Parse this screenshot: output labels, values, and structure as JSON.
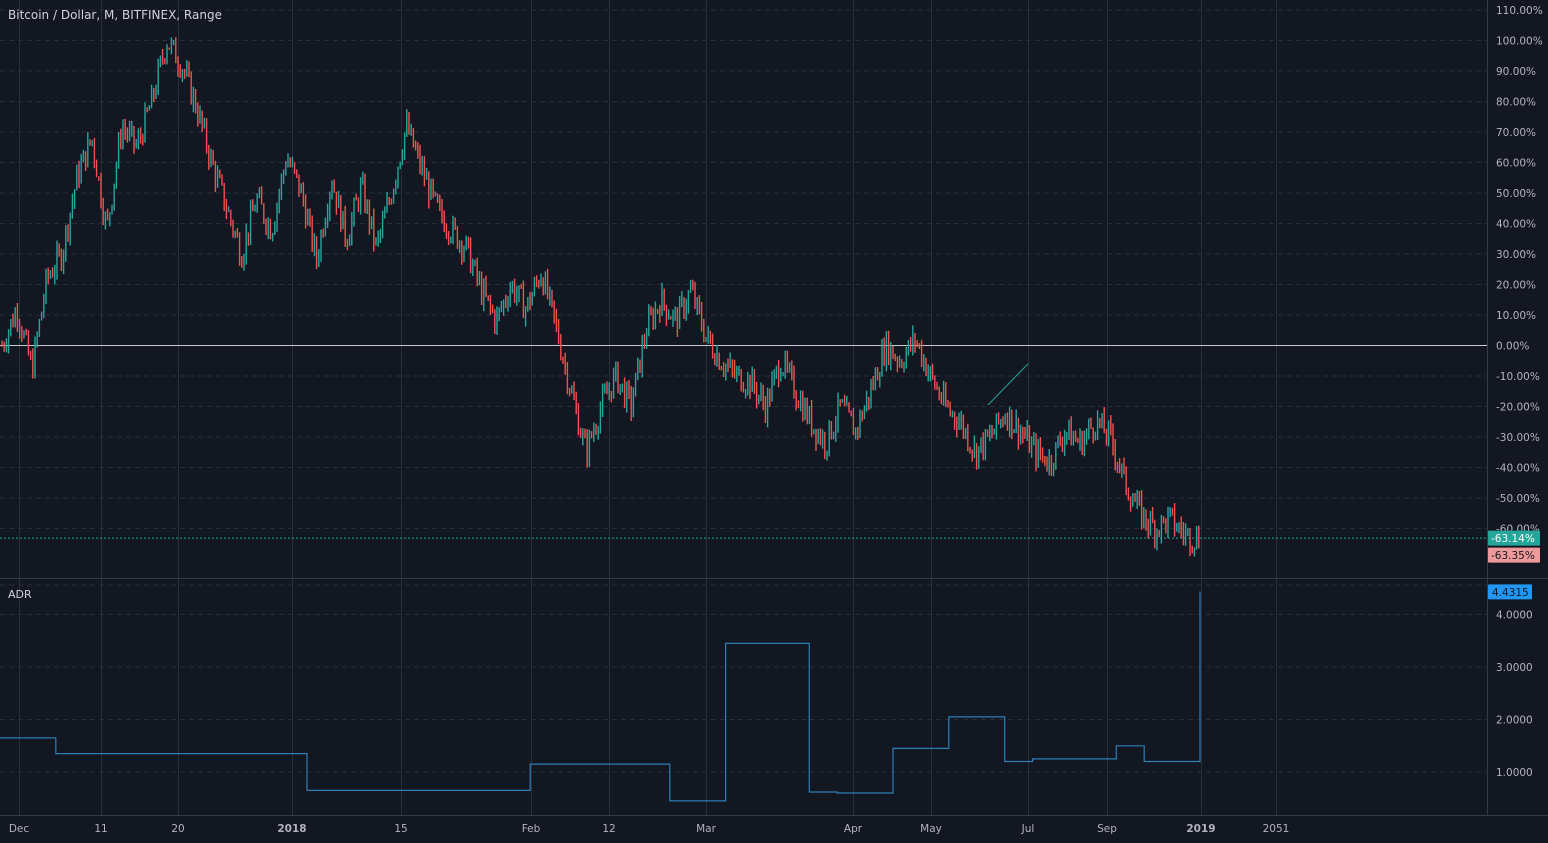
{
  "header": {
    "title": "Bitcoin / Dollar, M, BITFINEX, Range"
  },
  "adr": {
    "label": "ADR"
  },
  "colors": {
    "background": "#131722",
    "grid": "#2a2e39",
    "up": "#26a69a",
    "down": "#ef5350",
    "zero_line": "#c8cbd2",
    "adr_line": "#2e7db5",
    "last_price_badge": "#26a69a",
    "low_badge": "#ef9a9a",
    "adr_badge": "#2196f3"
  },
  "chart_data": [
    {
      "type": "line",
      "title": "Bitcoin / Dollar, M, BITFINEX, Range",
      "y_unit": "%",
      "ylim": [
        -70,
        110
      ],
      "yticks": [
        "110.00%",
        "100.00%",
        "90.00%",
        "80.00%",
        "70.00%",
        "60.00%",
        "50.00%",
        "40.00%",
        "30.00%",
        "20.00%",
        "10.00%",
        "0.00%",
        "-10.00%",
        "-20.00%",
        "-30.00%",
        "-40.00%",
        "-50.00%",
        "-60.00%"
      ],
      "ytick_values": [
        110,
        100,
        90,
        80,
        70,
        60,
        50,
        40,
        30,
        20,
        10,
        0,
        -10,
        -20,
        -30,
        -40,
        -50,
        -60
      ],
      "xticks": [
        "Dec",
        "11",
        "20",
        "2018",
        "15",
        "Feb",
        "12",
        "Mar",
        "Apr",
        "May",
        "Jul",
        "Sep",
        "2019",
        "2051"
      ],
      "bold_xticks": [
        "2018",
        "2019"
      ],
      "x": [
        0,
        2,
        4,
        6,
        8,
        10,
        12,
        14,
        16,
        18,
        20,
        22,
        24,
        26,
        28,
        30,
        32,
        34,
        36,
        38,
        40,
        42,
        44,
        46,
        48,
        50,
        52,
        54,
        56,
        58,
        60,
        62,
        64,
        66,
        68,
        70,
        72,
        74,
        76,
        78,
        80,
        82,
        84,
        86,
        88,
        90,
        92,
        94,
        96,
        98,
        100,
        102,
        104,
        106,
        108,
        110,
        112,
        114,
        116,
        118,
        120,
        122,
        124,
        126,
        128,
        130,
        132,
        134,
        136,
        138,
        140,
        142,
        144,
        146,
        148,
        150,
        152,
        154,
        156,
        158,
        160
      ],
      "series": [
        {
          "values": [
            0,
            12,
            -8,
            22,
            30,
            55,
            68,
            38,
            72,
            65,
            80,
            100,
            92,
            78,
            60,
            45,
            30,
            48,
            38,
            62,
            50,
            28,
            55,
            35,
            52,
            32,
            50,
            72,
            58,
            45,
            38,
            32,
            18,
            8,
            20,
            12,
            24,
            6,
            -15,
            -35,
            -20,
            -10,
            -20,
            5,
            15,
            8,
            18,
            3,
            -5,
            -10,
            -12,
            -20,
            -5,
            -15,
            -25,
            -32,
            -20,
            -28,
            -15,
            0,
            -5,
            2,
            -10,
            -20,
            -25,
            -35,
            -30,
            -22,
            -28,
            -35,
            -38,
            -28,
            -32,
            -25,
            -30,
            -45,
            -55,
            -60,
            -57,
            -62,
            -63.35
          ]
        }
      ],
      "annotation_line": {
        "from": [
          -19.5
        ],
        "to": [
          -6
        ]
      },
      "reference_line": 0,
      "last_value_labels": [
        "-63.14%",
        "-63.35%"
      ],
      "last_values": [
        -63.14,
        -63.35
      ],
      "legend": "none",
      "grid": true
    },
    {
      "type": "line",
      "title": "ADR",
      "ylim": [
        0.2,
        4.6
      ],
      "yticks": [
        "4.0000",
        "3.0000",
        "2.0000",
        "1.0000"
      ],
      "ytick_values": [
        4,
        3,
        2,
        1
      ],
      "step": true,
      "x": [
        0,
        2,
        7,
        11,
        16,
        19,
        20,
        24,
        25,
        26,
        27,
        29,
        30,
        32,
        34,
        36,
        37,
        40,
        41,
        43
      ],
      "series": [
        {
          "name": "ADR",
          "values": [
            1.65,
            1.35,
            1.35,
            0.65,
            0.65,
            1.15,
            1.15,
            0.45,
            0.45,
            3.45,
            3.45,
            0.62,
            0.6,
            1.45,
            2.05,
            1.2,
            1.25,
            1.5,
            1.2,
            4.4315
          ]
        }
      ],
      "last_value_label": "4.4315",
      "last_value": 4.4315,
      "legend": "none",
      "grid": true
    }
  ]
}
